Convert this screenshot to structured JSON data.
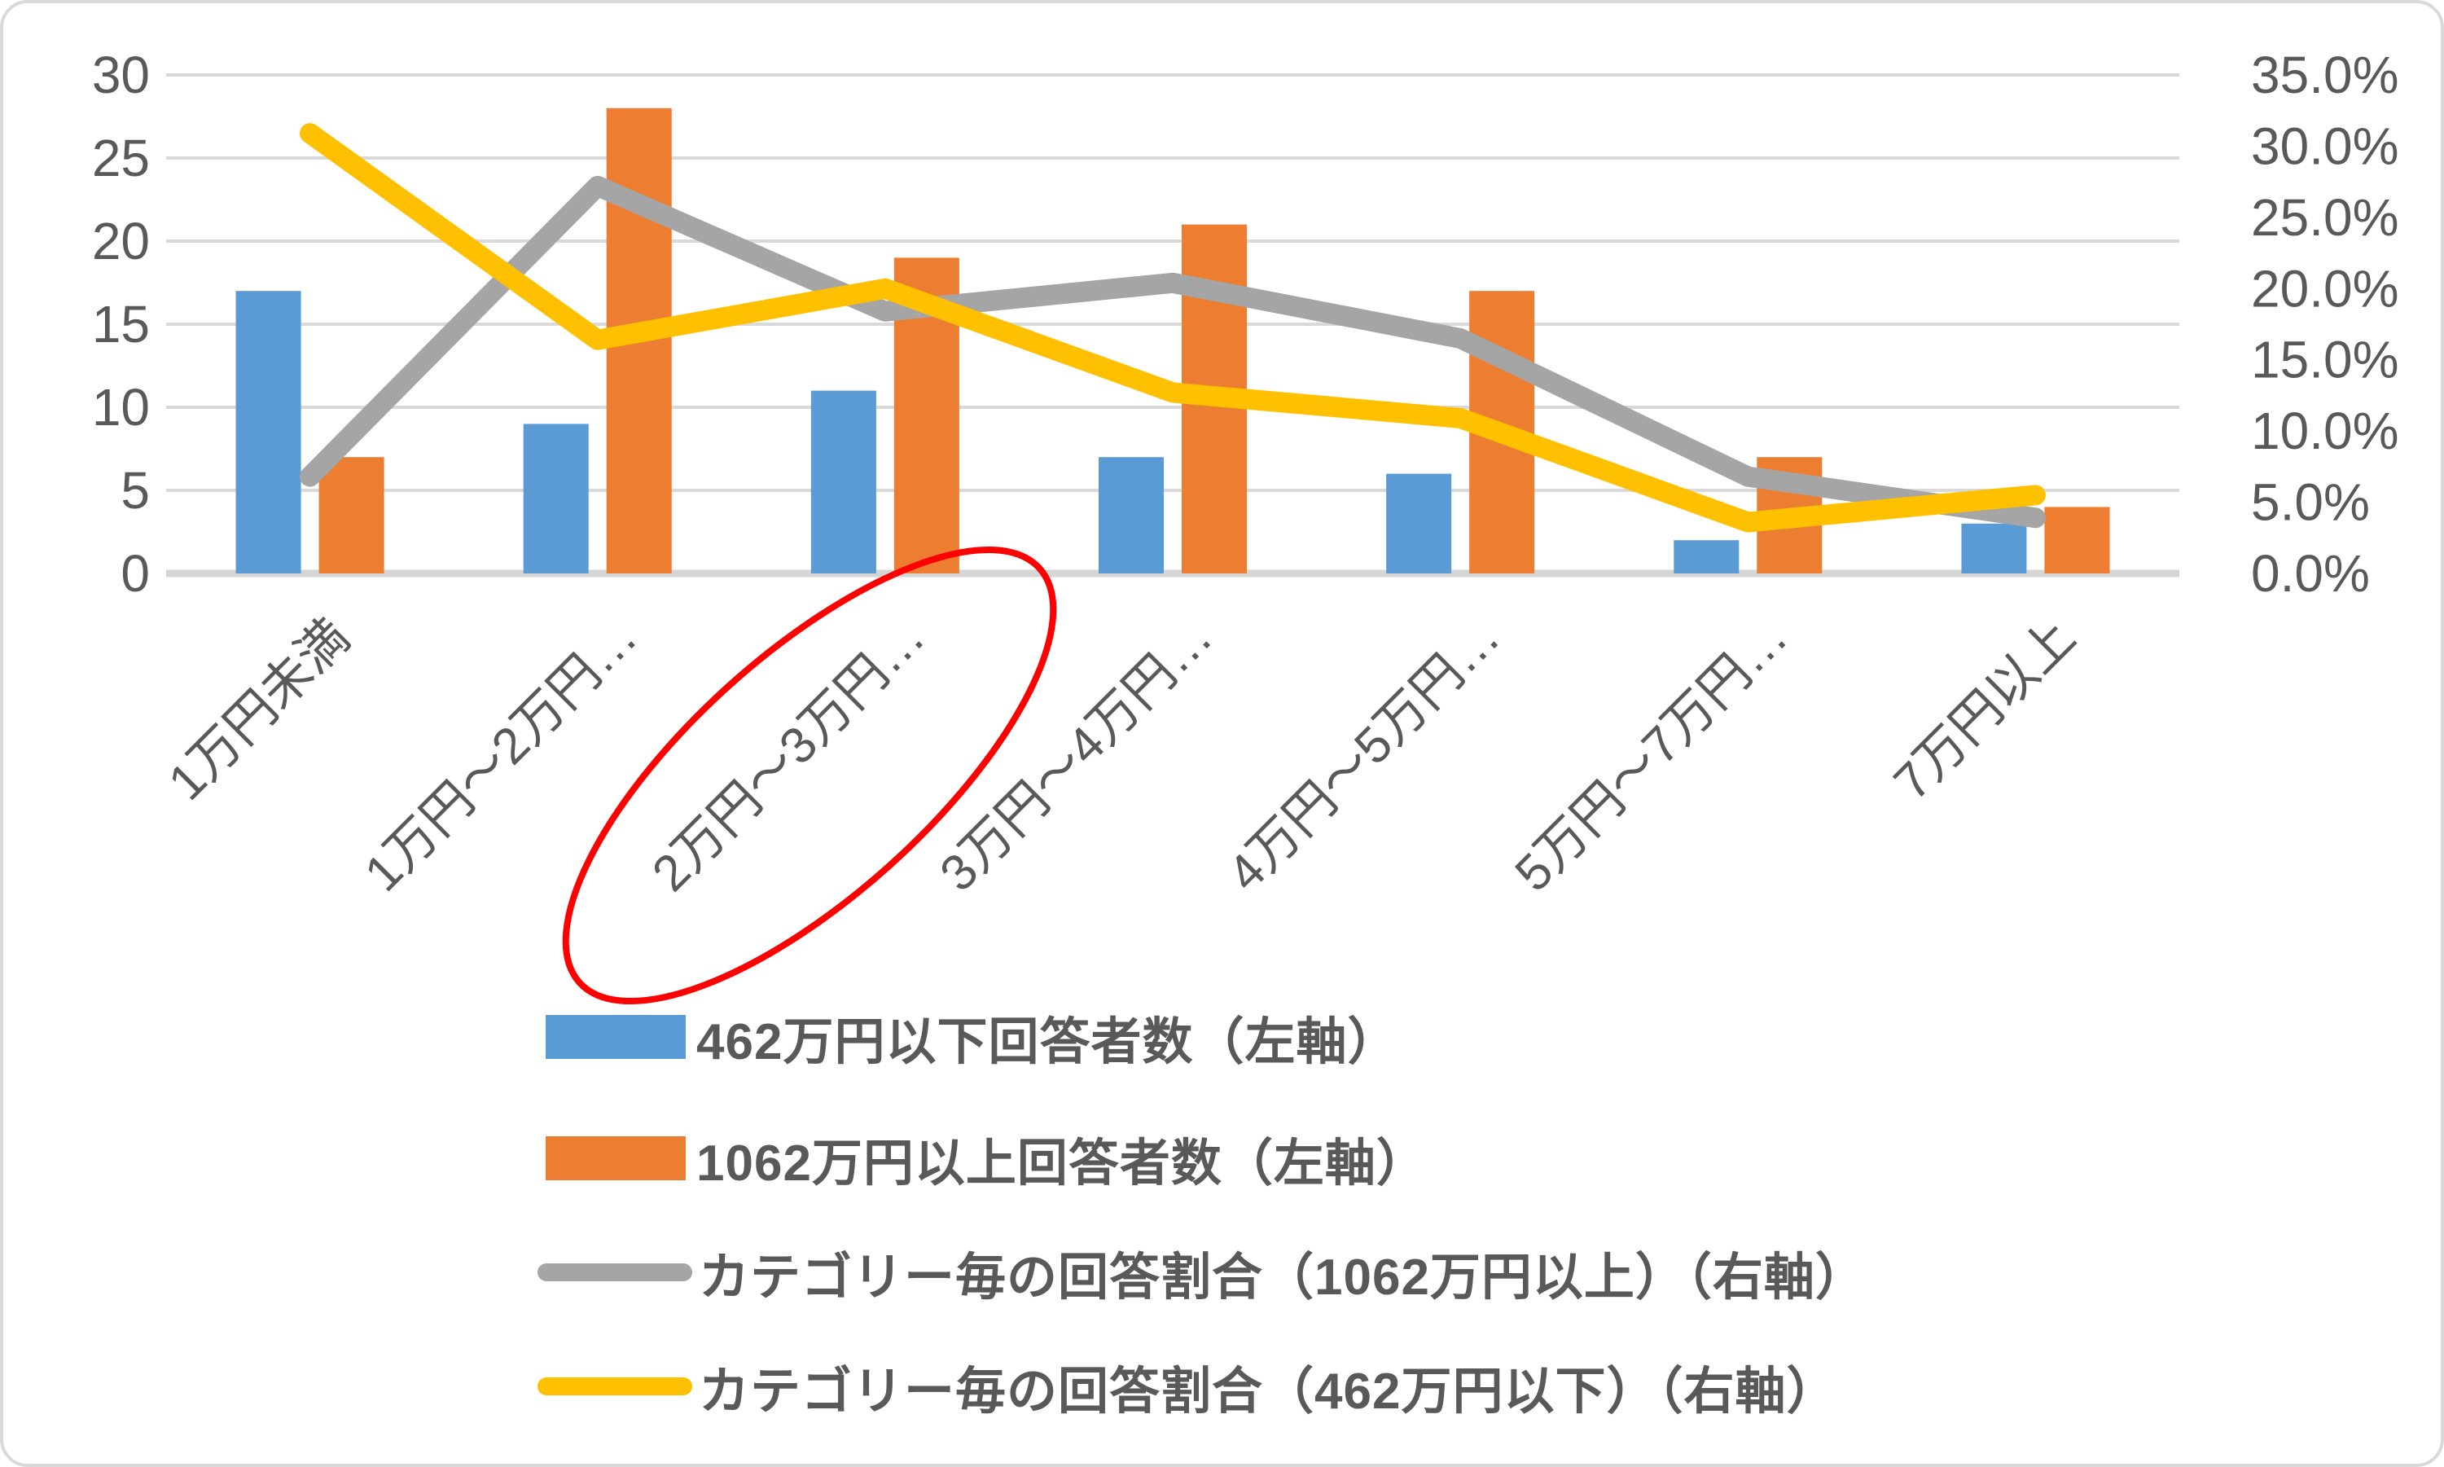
{
  "chart_data": {
    "type": "bar",
    "subtype": "bar-line-combo-dual-axis",
    "title": "",
    "categories": [
      "1万円未満",
      "1万円～2万円…",
      "2万円～3万円…",
      "3万円～4万円…",
      "4万円～5万円…",
      "5万円～7万円…",
      "7万円以上"
    ],
    "series": [
      {
        "name": "462万円以下回答者数（左軸）",
        "type": "bar",
        "axis": "left",
        "color": "#5B9BD5",
        "values": [
          17,
          9,
          11,
          7,
          6,
          2,
          3
        ]
      },
      {
        "name": "1062万円以上回答者数（左軸）",
        "type": "bar",
        "axis": "left",
        "color": "#ED7D31",
        "values": [
          7,
          28,
          19,
          21,
          17,
          7,
          4
        ]
      },
      {
        "name": "カテゴリー毎の回答割合（1062万円以上）（右軸）",
        "type": "line",
        "axis": "right",
        "color": "#A5A5A5",
        "values_pct": [
          6.8,
          27.2,
          18.4,
          20.4,
          16.5,
          6.8,
          3.9
        ]
      },
      {
        "name": "カテゴリー毎の回答割合（462万円以下）（右軸）",
        "type": "line",
        "axis": "right",
        "color": "#FFC000",
        "values_pct": [
          30.9,
          16.4,
          20.0,
          12.7,
          10.9,
          3.6,
          5.5
        ]
      }
    ],
    "left_axis": {
      "min": 0,
      "max": 30,
      "step": 5,
      "ticks": [
        "0",
        "5",
        "10",
        "15",
        "20",
        "25",
        "30"
      ]
    },
    "right_axis": {
      "min": 0,
      "max": 35,
      "step": 5,
      "ticks": [
        "0.0%",
        "5.0%",
        "10.0%",
        "15.0%",
        "20.0%",
        "25.0%",
        "30.0%",
        "35.0%"
      ]
    },
    "grid": true,
    "legend_position": "bottom-left",
    "annotation": {
      "shape": "ellipse",
      "target_category": "2万円～3万円…",
      "color": "#FF0000"
    }
  },
  "colors": {
    "grid": "#D9D9D9",
    "axis_line": "#D6D6D6",
    "text": "#595959",
    "background": "#FFFFFF",
    "frame_border": "#D9D9D9"
  }
}
